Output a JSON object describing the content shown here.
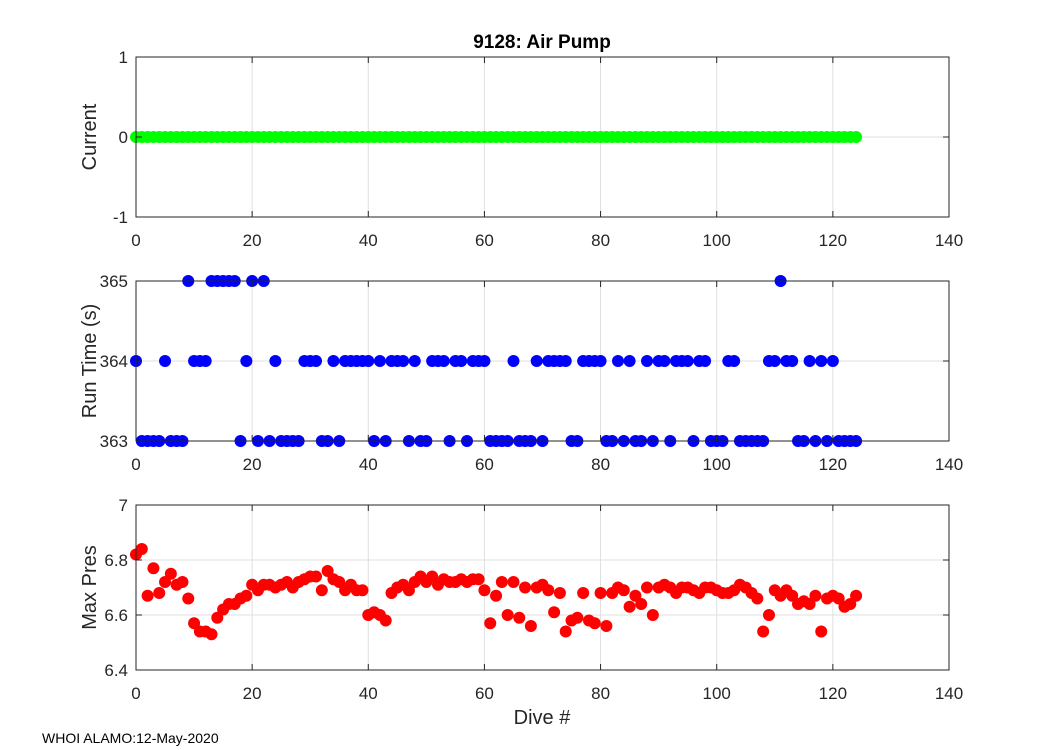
{
  "title": "9128: Air Pump",
  "footer": "WHOI ALAMO:12-May-2020",
  "chart_data": [
    {
      "type": "scatter",
      "ylabel": "Current",
      "xlabel": "",
      "xlim": [
        0,
        140
      ],
      "ylim": [
        -1,
        1
      ],
      "xticks": [
        0,
        20,
        40,
        60,
        80,
        100,
        120,
        140
      ],
      "yticks": [
        -1,
        0,
        1
      ],
      "grid": true,
      "color": "#00ff00",
      "x": [
        0,
        1,
        2,
        3,
        4,
        5,
        6,
        7,
        8,
        9,
        10,
        11,
        12,
        13,
        14,
        15,
        16,
        17,
        18,
        19,
        20,
        21,
        22,
        23,
        24,
        25,
        26,
        27,
        28,
        29,
        30,
        31,
        32,
        33,
        34,
        35,
        36,
        37,
        38,
        39,
        40,
        41,
        42,
        43,
        44,
        45,
        46,
        47,
        48,
        49,
        50,
        51,
        52,
        53,
        54,
        55,
        56,
        57,
        58,
        59,
        60,
        61,
        62,
        63,
        64,
        65,
        66,
        67,
        68,
        69,
        70,
        71,
        72,
        73,
        74,
        75,
        76,
        77,
        78,
        79,
        80,
        81,
        82,
        83,
        84,
        85,
        86,
        87,
        88,
        89,
        90,
        91,
        92,
        93,
        94,
        95,
        96,
        97,
        98,
        99,
        100,
        101,
        102,
        103,
        104,
        105,
        106,
        107,
        108,
        109,
        110,
        111,
        112,
        113,
        114,
        115,
        116,
        117,
        118,
        119,
        120,
        121,
        122,
        123,
        124
      ],
      "y": [
        0,
        0,
        0,
        0,
        0,
        0,
        0,
        0,
        0,
        0,
        0,
        0,
        0,
        0,
        0,
        0,
        0,
        0,
        0,
        0,
        0,
        0,
        0,
        0,
        0,
        0,
        0,
        0,
        0,
        0,
        0,
        0,
        0,
        0,
        0,
        0,
        0,
        0,
        0,
        0,
        0,
        0,
        0,
        0,
        0,
        0,
        0,
        0,
        0,
        0,
        0,
        0,
        0,
        0,
        0,
        0,
        0,
        0,
        0,
        0,
        0,
        0,
        0,
        0,
        0,
        0,
        0,
        0,
        0,
        0,
        0,
        0,
        0,
        0,
        0,
        0,
        0,
        0,
        0,
        0,
        0,
        0,
        0,
        0,
        0,
        0,
        0,
        0,
        0,
        0,
        0,
        0,
        0,
        0,
        0,
        0,
        0,
        0,
        0,
        0,
        0,
        0,
        0,
        0,
        0,
        0,
        0,
        0,
        0,
        0,
        0,
        0,
        0,
        0,
        0,
        0,
        0,
        0,
        0,
        0,
        0,
        0,
        0,
        0,
        0
      ]
    },
    {
      "type": "scatter",
      "ylabel": "Run Time (s)",
      "xlabel": "",
      "xlim": [
        0,
        140
      ],
      "ylim": [
        363,
        365
      ],
      "xticks": [
        0,
        20,
        40,
        60,
        80,
        100,
        120,
        140
      ],
      "yticks": [
        363,
        364,
        365
      ],
      "grid": true,
      "color": "#0000ff",
      "x": [
        0,
        1,
        2,
        3,
        4,
        5,
        6,
        7,
        8,
        9,
        10,
        11,
        12,
        13,
        14,
        15,
        16,
        17,
        18,
        19,
        20,
        21,
        22,
        23,
        24,
        25,
        26,
        27,
        28,
        29,
        30,
        31,
        32,
        33,
        34,
        35,
        36,
        37,
        38,
        39,
        40,
        41,
        42,
        43,
        44,
        45,
        46,
        47,
        48,
        49,
        50,
        51,
        52,
        53,
        54,
        55,
        56,
        57,
        58,
        59,
        60,
        61,
        62,
        63,
        64,
        65,
        66,
        67,
        68,
        69,
        70,
        71,
        72,
        73,
        74,
        75,
        76,
        77,
        78,
        79,
        80,
        81,
        82,
        83,
        84,
        85,
        86,
        87,
        88,
        89,
        90,
        91,
        92,
        93,
        94,
        95,
        96,
        97,
        98,
        99,
        100,
        101,
        102,
        103,
        104,
        105,
        106,
        107,
        108,
        109,
        110,
        111,
        112,
        113,
        114,
        115,
        116,
        117,
        118,
        119,
        120,
        121,
        122,
        123,
        124
      ],
      "y": [
        364,
        363,
        363,
        363,
        363,
        364,
        363,
        363,
        363,
        365,
        364,
        364,
        364,
        365,
        365,
        365,
        365,
        365,
        363,
        364,
        365,
        363,
        365,
        363,
        364,
        363,
        363,
        363,
        363,
        364,
        364,
        364,
        363,
        363,
        364,
        363,
        364,
        364,
        364,
        364,
        364,
        363,
        364,
        363,
        364,
        364,
        364,
        363,
        364,
        363,
        363,
        364,
        364,
        364,
        363,
        364,
        364,
        363,
        364,
        364,
        364,
        363,
        363,
        363,
        363,
        364,
        363,
        363,
        363,
        364,
        363,
        364,
        364,
        364,
        364,
        363,
        363,
        364,
        364,
        364,
        364,
        363,
        363,
        364,
        363,
        364,
        363,
        363,
        364,
        363,
        364,
        364,
        363,
        364,
        364,
        364,
        363,
        364,
        364,
        363,
        363,
        363,
        364,
        364,
        363,
        363,
        363,
        363,
        363,
        364,
        364,
        365,
        364,
        364,
        363,
        363,
        364,
        363,
        364,
        363,
        364,
        363,
        363,
        363,
        363
      ]
    },
    {
      "type": "scatter",
      "ylabel": "Max Pres",
      "xlabel": "Dive #",
      "xlim": [
        0,
        140
      ],
      "ylim": [
        6.4,
        7
      ],
      "xticks": [
        0,
        20,
        40,
        60,
        80,
        100,
        120,
        140
      ],
      "yticks": [
        6.4,
        6.6,
        6.8,
        7
      ],
      "grid": true,
      "color": "#ff0000",
      "x": [
        0,
        1,
        2,
        3,
        4,
        5,
        6,
        7,
        8,
        9,
        10,
        11,
        12,
        13,
        14,
        15,
        16,
        17,
        18,
        19,
        20,
        21,
        22,
        23,
        24,
        25,
        26,
        27,
        28,
        29,
        30,
        31,
        32,
        33,
        34,
        35,
        36,
        37,
        38,
        39,
        40,
        41,
        42,
        43,
        44,
        45,
        46,
        47,
        48,
        49,
        50,
        51,
        52,
        53,
        54,
        55,
        56,
        57,
        58,
        59,
        60,
        61,
        62,
        63,
        64,
        65,
        66,
        67,
        68,
        69,
        70,
        71,
        72,
        73,
        74,
        75,
        76,
        77,
        78,
        79,
        80,
        81,
        82,
        83,
        84,
        85,
        86,
        87,
        88,
        89,
        90,
        91,
        92,
        93,
        94,
        95,
        96,
        97,
        98,
        99,
        100,
        101,
        102,
        103,
        104,
        105,
        106,
        107,
        108,
        109,
        110,
        111,
        112,
        113,
        114,
        115,
        116,
        117,
        118,
        119,
        120,
        121,
        122,
        123,
        124
      ],
      "y": [
        6.82,
        6.84,
        6.67,
        6.77,
        6.68,
        6.72,
        6.75,
        6.71,
        6.72,
        6.66,
        6.57,
        6.54,
        6.54,
        6.53,
        6.59,
        6.62,
        6.64,
        6.64,
        6.66,
        6.67,
        6.71,
        6.69,
        6.71,
        6.71,
        6.7,
        6.71,
        6.72,
        6.7,
        6.72,
        6.73,
        6.74,
        6.74,
        6.69,
        6.76,
        6.73,
        6.72,
        6.69,
        6.71,
        6.69,
        6.69,
        6.6,
        6.61,
        6.6,
        6.58,
        6.68,
        6.7,
        6.71,
        6.69,
        6.72,
        6.74,
        6.72,
        6.74,
        6.71,
        6.73,
        6.72,
        6.72,
        6.73,
        6.72,
        6.73,
        6.73,
        6.69,
        6.57,
        6.67,
        6.72,
        6.6,
        6.72,
        6.59,
        6.7,
        6.56,
        6.7,
        6.71,
        6.69,
        6.61,
        6.68,
        6.54,
        6.58,
        6.59,
        6.68,
        6.58,
        6.57,
        6.68,
        6.56,
        6.68,
        6.7,
        6.69,
        6.63,
        6.67,
        6.64,
        6.7,
        6.6,
        6.7,
        6.71,
        6.7,
        6.68,
        6.7,
        6.7,
        6.69,
        6.68,
        6.7,
        6.7,
        6.69,
        6.68,
        6.68,
        6.69,
        6.71,
        6.7,
        6.68,
        6.66,
        6.54,
        6.6,
        6.69,
        6.67,
        6.69,
        6.67,
        6.64,
        6.65,
        6.64,
        6.67,
        6.54,
        6.66,
        6.67,
        6.66,
        6.63,
        6.64,
        6.67
      ]
    }
  ]
}
